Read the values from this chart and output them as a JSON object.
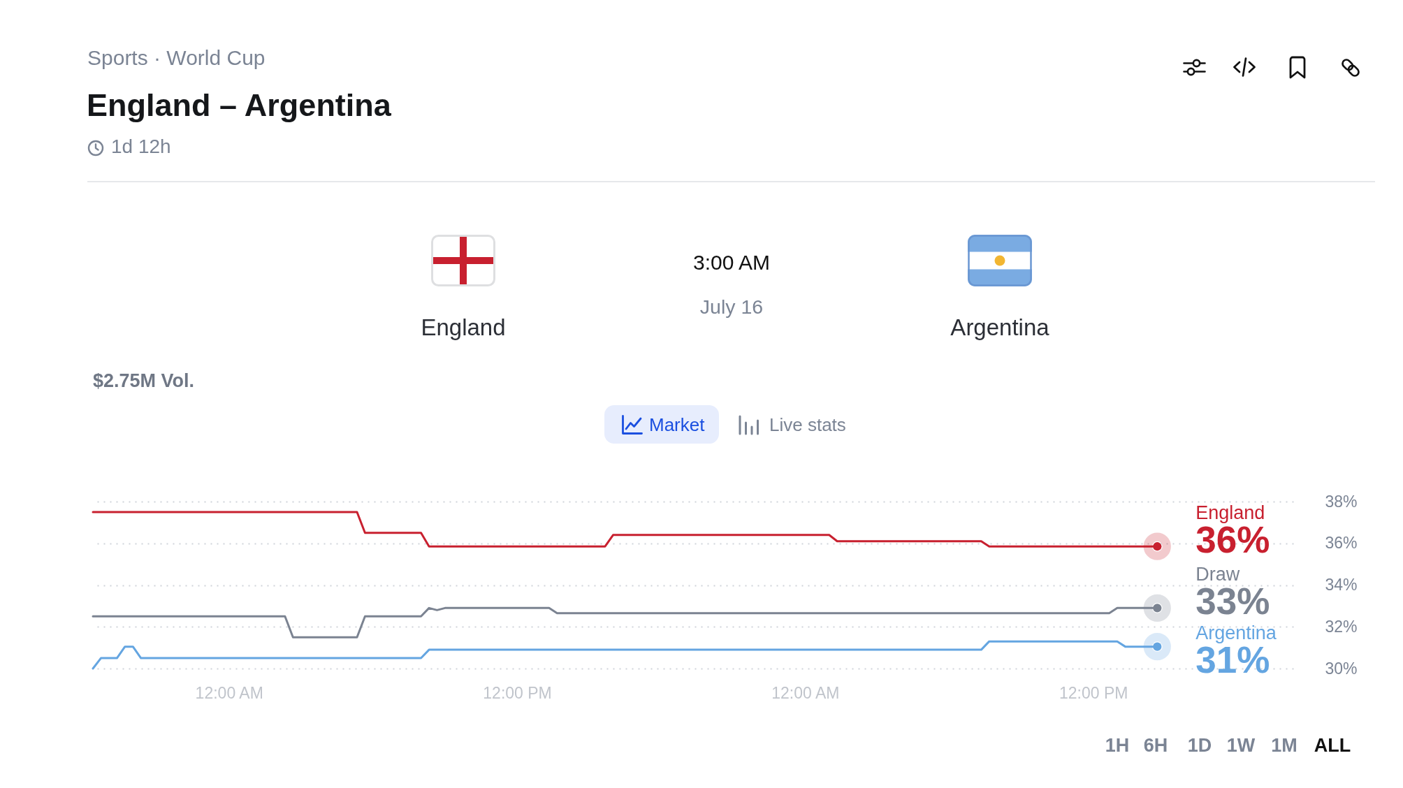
{
  "chart_data": {
    "type": "line",
    "title": "England – Argentina",
    "annotations": [
      "Sports · World Cup",
      "1d 12h",
      "England",
      "3:00 AM",
      "July 16",
      "Argentina",
      "$2.75M Vol.",
      "Market",
      "Live stats",
      "1H",
      "6H",
      "1D",
      "1W",
      "1M",
      "ALL"
    ],
    "categories": [
      null,
      null,
      null,
      null,
      null,
      null,
      null,
      null,
      null,
      null,
      null,
      null,
      null,
      null,
      null,
      null,
      null,
      "12:00 AM",
      null,
      null,
      null,
      null,
      null,
      null,
      null,
      null,
      null,
      null,
      null,
      null,
      null,
      null,
      null,
      null,
      null,
      null,
      null,
      null,
      null,
      null,
      null,
      null,
      null,
      null,
      null,
      null,
      null,
      null,
      null,
      null,
      null,
      null,
      null,
      "12:00 PM",
      null,
      null,
      null,
      null,
      null,
      null,
      null,
      null,
      null,
      null,
      null,
      null,
      null,
      null,
      null,
      null,
      null,
      null,
      null,
      null,
      null,
      null,
      null,
      null,
      null,
      null,
      null,
      null,
      null,
      null,
      null,
      null,
      null,
      null,
      null,
      "12:00 AM",
      null,
      null,
      null,
      null,
      null,
      null,
      null,
      null,
      null,
      null,
      null,
      null,
      null,
      null,
      null,
      null,
      null,
      null,
      null,
      null,
      null,
      null,
      null,
      null,
      null,
      null,
      null,
      null,
      null,
      null,
      null,
      null,
      null,
      null,
      null,
      "12:00 PM",
      null,
      null,
      null,
      null,
      null,
      null,
      null,
      null,
      null,
      null,
      null,
      null,
      null,
      null,
      null,
      null,
      null,
      null,
      null,
      null,
      null,
      null,
      null,
      null,
      null
    ],
    "ylim": [
      30,
      38
    ],
    "yticks": [
      {
        "value": 30,
        "label": "30%"
      },
      {
        "value": 32,
        "label": "32%"
      },
      {
        "value": 34,
        "label": "34%"
      },
      {
        "value": 36,
        "label": "36%"
      },
      {
        "value": 38,
        "label": "38%"
      }
    ],
    "grid": "y",
    "series": [
      {
        "name": "England",
        "color": "#c8202f",
        "values": [
          37.5,
          37.5,
          37.5,
          37.5,
          37.5,
          37.5,
          37.5,
          37.5,
          37.5,
          37.5,
          37.5,
          37.5,
          37.5,
          37.5,
          37.5,
          37.5,
          37.5,
          37.5,
          37.5,
          37.5,
          37.5,
          37.5,
          37.5,
          37.5,
          37.5,
          37.5,
          37.5,
          37.5,
          37.5,
          37.5,
          37.5,
          37.5,
          37.5,
          37.5,
          36.5,
          36.5,
          36.5,
          36.5,
          36.5,
          36.5,
          36.5,
          36.5,
          35.85,
          35.85,
          35.85,
          35.85,
          35.85,
          35.85,
          35.85,
          35.85,
          35.85,
          35.85,
          35.85,
          35.85,
          35.85,
          35.85,
          35.85,
          35.85,
          35.85,
          35.85,
          35.85,
          35.85,
          35.85,
          35.85,
          35.85,
          36.4,
          36.4,
          36.4,
          36.4,
          36.4,
          36.4,
          36.4,
          36.4,
          36.4,
          36.4,
          36.4,
          36.4,
          36.4,
          36.4,
          36.4,
          36.4,
          36.4,
          36.4,
          36.4,
          36.4,
          36.4,
          36.4,
          36.4,
          36.4,
          36.4,
          36.4,
          36.4,
          36.4,
          36.1,
          36.1,
          36.1,
          36.1,
          36.1,
          36.1,
          36.1,
          36.1,
          36.1,
          36.1,
          36.1,
          36.1,
          36.1,
          36.1,
          36.1,
          36.1,
          36.1,
          36.1,
          36.1,
          35.85,
          35.85,
          35.85,
          35.85,
          35.85,
          35.85,
          35.85,
          35.85,
          35.85,
          35.85,
          35.85,
          35.85,
          35.85,
          35.85,
          35.85,
          35.85,
          35.85,
          35.85,
          35.85,
          35.85,
          35.85,
          35.85,
          null,
          null,
          null,
          null,
          null,
          null,
          null,
          null,
          null,
          null,
          null,
          null,
          null,
          null,
          null,
          null,
          null
        ]
      },
      {
        "name": "Draw",
        "color": "#7b8391",
        "values": [
          32.5,
          32.5,
          32.5,
          32.5,
          32.5,
          32.5,
          32.5,
          32.5,
          32.5,
          32.5,
          32.5,
          32.5,
          32.5,
          32.5,
          32.5,
          32.5,
          32.5,
          32.5,
          32.5,
          32.5,
          32.5,
          32.5,
          32.5,
          32.5,
          32.5,
          31.5,
          31.5,
          31.5,
          31.5,
          31.5,
          31.5,
          31.5,
          31.5,
          31.5,
          32.5,
          32.5,
          32.5,
          32.5,
          32.5,
          32.5,
          32.5,
          32.5,
          32.9,
          32.8,
          32.9,
          32.9,
          32.9,
          32.9,
          32.9,
          32.9,
          32.9,
          32.9,
          32.9,
          32.9,
          32.9,
          32.9,
          32.9,
          32.9,
          32.65,
          32.65,
          32.65,
          32.65,
          32.65,
          32.65,
          32.65,
          32.65,
          32.65,
          32.65,
          32.65,
          32.65,
          32.65,
          32.65,
          32.65,
          32.65,
          32.65,
          32.65,
          32.65,
          32.65,
          32.65,
          32.65,
          32.65,
          32.65,
          32.65,
          32.65,
          32.65,
          32.65,
          32.65,
          32.65,
          32.65,
          32.65,
          32.65,
          32.65,
          32.65,
          32.65,
          32.65,
          32.65,
          32.65,
          32.65,
          32.65,
          32.65,
          32.65,
          32.65,
          32.65,
          32.65,
          32.65,
          32.65,
          32.65,
          32.65,
          32.65,
          32.65,
          32.65,
          32.65,
          32.65,
          32.65,
          32.65,
          32.65,
          32.65,
          32.65,
          32.65,
          32.65,
          32.65,
          32.65,
          32.65,
          32.65,
          32.65,
          32.65,
          32.65,
          32.65,
          32.9,
          32.9,
          32.9,
          32.9,
          32.9,
          32.9,
          null,
          null,
          null,
          null,
          null,
          null,
          null,
          null,
          null,
          null,
          null,
          null,
          null,
          null,
          null,
          null,
          null
        ]
      },
      {
        "name": "Argentina",
        "color": "#64a5e1",
        "values": [
          30.0,
          30.5,
          30.5,
          30.5,
          31.05,
          31.05,
          30.5,
          30.5,
          30.5,
          30.5,
          30.5,
          30.5,
          30.5,
          30.5,
          30.5,
          30.5,
          30.5,
          30.5,
          30.5,
          30.5,
          30.5,
          30.5,
          30.5,
          30.5,
          30.5,
          30.5,
          30.5,
          30.5,
          30.5,
          30.5,
          30.5,
          30.5,
          30.5,
          30.5,
          30.5,
          30.5,
          30.5,
          30.5,
          30.5,
          30.5,
          30.5,
          30.5,
          30.9,
          30.9,
          30.9,
          30.9,
          30.9,
          30.9,
          30.9,
          30.9,
          30.9,
          30.9,
          30.9,
          30.9,
          30.9,
          30.9,
          30.9,
          30.9,
          30.9,
          30.9,
          30.9,
          30.9,
          30.9,
          30.9,
          30.9,
          30.9,
          30.9,
          30.9,
          30.9,
          30.9,
          30.9,
          30.9,
          30.9,
          30.9,
          30.9,
          30.9,
          30.9,
          30.9,
          30.9,
          30.9,
          30.9,
          30.9,
          30.9,
          30.9,
          30.9,
          30.9,
          30.9,
          30.9,
          30.9,
          30.9,
          30.9,
          30.9,
          30.9,
          30.9,
          30.9,
          30.9,
          30.9,
          30.9,
          30.9,
          30.9,
          30.9,
          30.9,
          30.9,
          30.9,
          30.9,
          30.9,
          30.9,
          30.9,
          30.9,
          30.9,
          30.9,
          30.9,
          31.3,
          31.3,
          31.3,
          31.3,
          31.3,
          31.3,
          31.3,
          31.3,
          31.3,
          31.3,
          31.3,
          31.3,
          31.3,
          31.3,
          31.3,
          31.3,
          31.3,
          31.05,
          31.05,
          31.05,
          31.05,
          31.05,
          null,
          null,
          null,
          null,
          null,
          null,
          null,
          null,
          null,
          null,
          null,
          null,
          null,
          null,
          null,
          null,
          null
        ]
      },
      {
        "type": "scatter",
        "color": "#c8202f",
        "values": [
          null,
          null,
          null,
          null,
          null,
          null,
          null,
          null,
          null,
          null,
          null,
          null,
          null,
          null,
          null,
          null,
          null,
          null,
          null,
          null,
          null,
          null,
          null,
          null,
          null,
          null,
          null,
          null,
          null,
          null,
          null,
          null,
          null,
          null,
          null,
          null,
          null,
          null,
          null,
          null,
          null,
          null,
          null,
          null,
          null,
          null,
          null,
          null,
          null,
          null,
          null,
          null,
          null,
          null,
          null,
          null,
          null,
          null,
          null,
          null,
          null,
          null,
          null,
          null,
          null,
          null,
          null,
          null,
          null,
          null,
          null,
          null,
          null,
          null,
          null,
          null,
          null,
          null,
          null,
          null,
          null,
          null,
          null,
          null,
          null,
          null,
          null,
          null,
          null,
          null,
          null,
          null,
          null,
          null,
          null,
          null,
          null,
          null,
          null,
          null,
          null,
          null,
          null,
          null,
          null,
          null,
          null,
          null,
          null,
          null,
          null,
          null,
          null,
          null,
          null,
          null,
          null,
          null,
          null,
          null,
          null,
          null,
          null,
          null,
          null,
          null,
          null,
          null,
          null,
          null,
          null,
          null,
          null,
          35.85,
          null,
          null,
          null,
          null,
          null,
          null,
          null,
          null,
          null,
          null,
          null,
          null,
          null,
          null,
          null,
          null,
          null
        ],
        "value_labels": [
          null,
          null,
          null,
          null,
          null,
          null,
          null,
          null,
          null,
          null,
          null,
          null,
          null,
          null,
          null,
          null,
          null,
          null,
          null,
          null,
          null,
          null,
          null,
          null,
          null,
          null,
          null,
          null,
          null,
          null,
          null,
          null,
          null,
          null,
          null,
          null,
          null,
          null,
          null,
          null,
          null,
          null,
          null,
          null,
          null,
          null,
          null,
          null,
          null,
          null,
          null,
          null,
          null,
          null,
          null,
          null,
          null,
          null,
          null,
          null,
          null,
          null,
          null,
          null,
          null,
          null,
          null,
          null,
          null,
          null,
          null,
          null,
          null,
          null,
          null,
          null,
          null,
          null,
          null,
          null,
          null,
          null,
          null,
          null,
          null,
          null,
          null,
          null,
          null,
          null,
          null,
          null,
          null,
          null,
          null,
          null,
          null,
          null,
          null,
          null,
          null,
          null,
          null,
          null,
          null,
          null,
          null,
          null,
          null,
          null,
          null,
          null,
          null,
          null,
          null,
          null,
          null,
          null,
          null,
          null,
          null,
          null,
          null,
          null,
          null,
          null,
          null,
          null,
          null,
          null,
          null,
          null,
          null,
          "36%",
          null,
          null,
          null,
          null,
          null,
          null,
          null,
          null,
          null,
          null,
          null,
          null,
          null,
          null,
          null,
          null,
          null
        ]
      },
      {
        "type": "scatter",
        "color": "#7b8391",
        "values": [
          null,
          null,
          null,
          null,
          null,
          null,
          null,
          null,
          null,
          null,
          null,
          null,
          null,
          null,
          null,
          null,
          null,
          null,
          null,
          null,
          null,
          null,
          null,
          null,
          null,
          null,
          null,
          null,
          null,
          null,
          null,
          null,
          null,
          null,
          null,
          null,
          null,
          null,
          null,
          null,
          null,
          null,
          null,
          null,
          null,
          null,
          null,
          null,
          null,
          null,
          null,
          null,
          null,
          null,
          null,
          null,
          null,
          null,
          null,
          null,
          null,
          null,
          null,
          null,
          null,
          null,
          null,
          null,
          null,
          null,
          null,
          null,
          null,
          null,
          null,
          null,
          null,
          null,
          null,
          null,
          null,
          null,
          null,
          null,
          null,
          null,
          null,
          null,
          null,
          null,
          null,
          null,
          null,
          null,
          null,
          null,
          null,
          null,
          null,
          null,
          null,
          null,
          null,
          null,
          null,
          null,
          null,
          null,
          null,
          null,
          null,
          null,
          null,
          null,
          null,
          null,
          null,
          null,
          null,
          null,
          null,
          null,
          null,
          null,
          null,
          null,
          null,
          null,
          null,
          null,
          null,
          null,
          null,
          32.9,
          null,
          null,
          null,
          null,
          null,
          null,
          null,
          null,
          null,
          null,
          null,
          null,
          null,
          null,
          null,
          null,
          null
        ],
        "value_labels": [
          null,
          null,
          null,
          null,
          null,
          null,
          null,
          null,
          null,
          null,
          null,
          null,
          null,
          null,
          null,
          null,
          null,
          null,
          null,
          null,
          null,
          null,
          null,
          null,
          null,
          null,
          null,
          null,
          null,
          null,
          null,
          null,
          null,
          null,
          null,
          null,
          null,
          null,
          null,
          null,
          null,
          null,
          null,
          null,
          null,
          null,
          null,
          null,
          null,
          null,
          null,
          null,
          null,
          null,
          null,
          null,
          null,
          null,
          null,
          null,
          null,
          null,
          null,
          null,
          null,
          null,
          null,
          null,
          null,
          null,
          null,
          null,
          null,
          null,
          null,
          null,
          null,
          null,
          null,
          null,
          null,
          null,
          null,
          null,
          null,
          null,
          null,
          null,
          null,
          null,
          null,
          null,
          null,
          null,
          null,
          null,
          null,
          null,
          null,
          null,
          null,
          null,
          null,
          null,
          null,
          null,
          null,
          null,
          null,
          null,
          null,
          null,
          null,
          null,
          null,
          null,
          null,
          null,
          null,
          null,
          null,
          null,
          null,
          null,
          null,
          null,
          null,
          null,
          null,
          null,
          null,
          null,
          null,
          "33%",
          null,
          null,
          null,
          null,
          null,
          null,
          null,
          null,
          null,
          null,
          null,
          null,
          null,
          null,
          null,
          null,
          null
        ]
      },
      {
        "type": "scatter",
        "color": "#64a5e1",
        "values": [
          null,
          null,
          null,
          null,
          null,
          null,
          null,
          null,
          null,
          null,
          null,
          null,
          null,
          null,
          null,
          null,
          null,
          null,
          null,
          null,
          null,
          null,
          null,
          null,
          null,
          null,
          null,
          null,
          null,
          null,
          null,
          null,
          null,
          null,
          null,
          null,
          null,
          null,
          null,
          null,
          null,
          null,
          null,
          null,
          null,
          null,
          null,
          null,
          null,
          null,
          null,
          null,
          null,
          null,
          null,
          null,
          null,
          null,
          null,
          null,
          null,
          null,
          null,
          null,
          null,
          null,
          null,
          null,
          null,
          null,
          null,
          null,
          null,
          null,
          null,
          null,
          null,
          null,
          null,
          null,
          null,
          null,
          null,
          null,
          null,
          null,
          null,
          null,
          null,
          null,
          null,
          null,
          null,
          null,
          null,
          null,
          null,
          null,
          null,
          null,
          null,
          null,
          null,
          null,
          null,
          null,
          null,
          null,
          null,
          null,
          null,
          null,
          null,
          null,
          null,
          null,
          null,
          null,
          null,
          null,
          null,
          null,
          null,
          null,
          null,
          null,
          null,
          null,
          null,
          null,
          null,
          null,
          null,
          31.05,
          null,
          null,
          null,
          null,
          null,
          null,
          null,
          null,
          null,
          null,
          null,
          null,
          null,
          null,
          null,
          null,
          null
        ],
        "value_labels": [
          null,
          null,
          null,
          null,
          null,
          null,
          null,
          null,
          null,
          null,
          null,
          null,
          null,
          null,
          null,
          null,
          null,
          null,
          null,
          null,
          null,
          null,
          null,
          null,
          null,
          null,
          null,
          null,
          null,
          null,
          null,
          null,
          null,
          null,
          null,
          null,
          null,
          null,
          null,
          null,
          null,
          null,
          null,
          null,
          null,
          null,
          null,
          null,
          null,
          null,
          null,
          null,
          null,
          null,
          null,
          null,
          null,
          null,
          null,
          null,
          null,
          null,
          null,
          null,
          null,
          null,
          null,
          null,
          null,
          null,
          null,
          null,
          null,
          null,
          null,
          null,
          null,
          null,
          null,
          null,
          null,
          null,
          null,
          null,
          null,
          null,
          null,
          null,
          null,
          null,
          null,
          null,
          null,
          null,
          null,
          null,
          null,
          null,
          null,
          null,
          null,
          null,
          null,
          null,
          null,
          null,
          null,
          null,
          null,
          null,
          null,
          null,
          null,
          null,
          null,
          null,
          null,
          null,
          null,
          null,
          null,
          null,
          null,
          null,
          null,
          null,
          null,
          null,
          null,
          null,
          null,
          null,
          null,
          "31%",
          null,
          null,
          null,
          null,
          null,
          null,
          null,
          null,
          null,
          null,
          null,
          null,
          null,
          null,
          null,
          null,
          null
        ]
      }
    ]
  }
}
